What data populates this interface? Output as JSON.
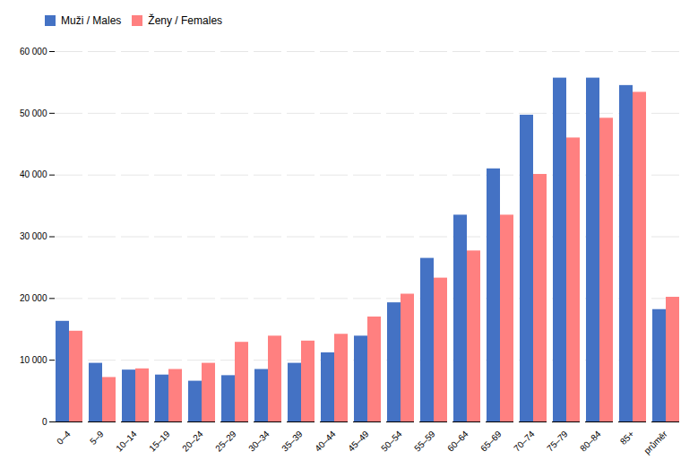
{
  "chart_data": {
    "type": "bar",
    "categories": [
      "0–4",
      "5–9",
      "10–14",
      "15–19",
      "20–24",
      "25–29",
      "30–34",
      "35–39",
      "40–44",
      "45–49",
      "50–54",
      "55–59",
      "60–64",
      "65–69",
      "70–74",
      "75–79",
      "80–84",
      "85+",
      "průměr"
    ],
    "series": [
      {
        "name": "Muži / Males",
        "color": "#4472C4",
        "values": [
          16300,
          9500,
          8400,
          7600,
          6600,
          7500,
          8500,
          9500,
          11200,
          13900,
          19300,
          26500,
          33500,
          41000,
          49700,
          55700,
          55700,
          54500,
          18200
        ]
      },
      {
        "name": "Ženy / Females",
        "color": "#FF8080",
        "values": [
          14700,
          7200,
          8600,
          8500,
          9500,
          12900,
          13900,
          13100,
          14200,
          17000,
          20700,
          23300,
          27700,
          33500,
          40100,
          46000,
          49200,
          53400,
          20200
        ]
      }
    ],
    "ylim": [
      0,
      60000
    ],
    "yticks": [
      0,
      {
        "value": 10000,
        "label": "10 000"
      },
      {
        "value": 20000,
        "label": "20 000"
      },
      {
        "value": 30000,
        "label": "30 000"
      },
      {
        "value": 40000,
        "label": "40 000"
      },
      {
        "value": 50000,
        "label": "50 000"
      },
      {
        "value": 60000,
        "label": "60 000"
      }
    ],
    "grid": true,
    "legend": "upper left"
  }
}
